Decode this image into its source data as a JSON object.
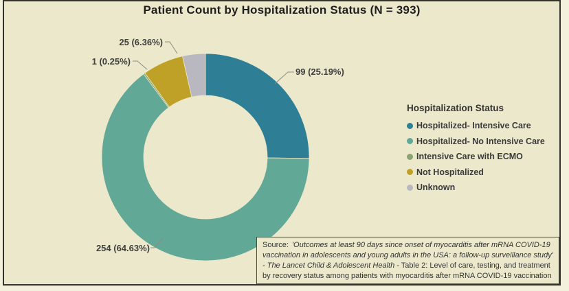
{
  "window": {
    "outer_bg": "#f3f0dc",
    "frame_border": "#35342c",
    "canvas_bg": "#ebe8cb"
  },
  "chart_data": {
    "type": "donut",
    "title": "Patient Count by Hospitalization Status (N = 393)",
    "total_n": 393,
    "legend_title": "Hospitalization Status",
    "legend_position": "right",
    "start_angle_deg": 0,
    "direction": "clockwise",
    "slices": [
      {
        "id": "hospitalized-intensive-care",
        "label": "Hospitalized- Intensive Care",
        "value": 99,
        "pct": "25.19%",
        "color": "#2e7e95",
        "callout": "99 (25.19%)"
      },
      {
        "id": "hospitalized-no-intensive-care",
        "label": "Hospitalized- No Intensive Care",
        "value": 254,
        "pct": "64.63%",
        "color": "#61a897",
        "callout": "254 (64.63%)"
      },
      {
        "id": "intensive-care-with-ecmo",
        "label": "Intensive Care with ECMO",
        "value": 1,
        "pct": "0.25%",
        "color": "#8ba372",
        "callout": "1 (0.25%)"
      },
      {
        "id": "not-hospitalized",
        "label": "Not Hospitalized",
        "value": 25,
        "pct": "6.36%",
        "color": "#c0a127",
        "callout": "25 (6.36%)"
      },
      {
        "id": "unknown",
        "label": "Unknown",
        "value": 14,
        "pct": "3.56%",
        "color": "#b9b7bf",
        "callout": null
      }
    ]
  },
  "source": {
    "prefix": "Source:",
    "italic": "'Outcomes at least 90 days since onset of myocarditis after mRNA COVID-19 vaccination in adolescents and young adults in the USA: a follow-up surveillance study' - The Lancet Child & Adolescent Health",
    "rest": "- Table 2: Level of care, testing, and treatment by recovery status among patients with myocarditis after mRNA COVID-19 vaccination"
  }
}
